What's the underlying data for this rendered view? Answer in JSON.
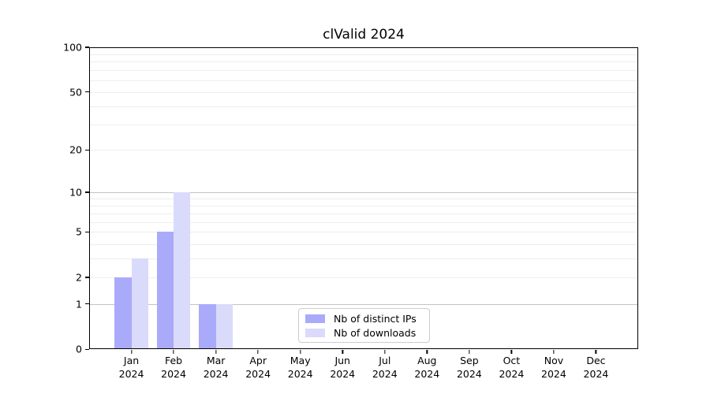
{
  "chart_data": {
    "type": "bar",
    "title": "clValid 2024",
    "categories": [
      "Jan",
      "Feb",
      "Mar",
      "Apr",
      "May",
      "Jun",
      "Jul",
      "Aug",
      "Sep",
      "Oct",
      "Nov",
      "Dec"
    ],
    "x_year_label": "2024",
    "series": [
      {
        "name": "Nb of distinct IPs",
        "color": "#aaaafa",
        "values": [
          2,
          5,
          1,
          0,
          0,
          0,
          0,
          0,
          0,
          0,
          0,
          0
        ]
      },
      {
        "name": "Nb of downloads",
        "color": "#dadafa",
        "values": [
          3,
          10,
          1,
          0,
          0,
          0,
          0,
          0,
          0,
          0,
          0,
          0
        ]
      }
    ],
    "yscale": "log1p",
    "yticks": [
      0,
      1,
      2,
      5,
      10,
      20,
      50,
      100
    ],
    "ylim": [
      0,
      115
    ],
    "grid": {
      "on": true,
      "major_ticks": [
        1,
        10,
        100
      ],
      "minor_ticks": [
        2,
        3,
        4,
        5,
        6,
        7,
        8,
        9,
        20,
        30,
        40,
        50,
        60,
        70,
        80,
        90
      ],
      "major_color": "#c3c3c3",
      "minor_color": "#eeeeee"
    },
    "axis_color": "#000000",
    "legend_position": "lower center"
  }
}
